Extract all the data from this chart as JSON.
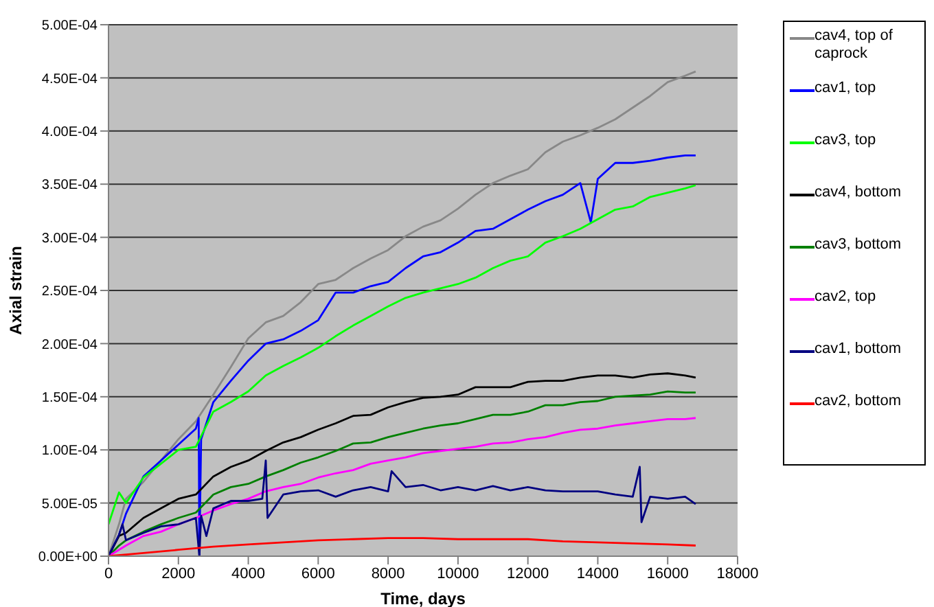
{
  "chart_data": {
    "type": "line",
    "xlabel": "Time, days",
    "ylabel": "Axial strain",
    "xlim": [
      0,
      18000
    ],
    "xticks": [
      0,
      2000,
      4000,
      6000,
      8000,
      10000,
      12000,
      14000,
      16000,
      18000
    ],
    "ylim": [
      0,
      0.0005
    ],
    "yticks": [
      {
        "value": 0,
        "label": "0.00E+00"
      },
      {
        "value": 5e-05,
        "label": "5.00E-05"
      },
      {
        "value": 0.0001,
        "label": "1.00E-04"
      },
      {
        "value": 0.00015,
        "label": "1.50E-04"
      },
      {
        "value": 0.0002,
        "label": "2.00E-04"
      },
      {
        "value": 0.00025,
        "label": "2.50E-04"
      },
      {
        "value": 0.0003,
        "label": "3.00E-04"
      },
      {
        "value": 0.00035,
        "label": "3.50E-04"
      },
      {
        "value": 0.0004,
        "label": "4.00E-04"
      },
      {
        "value": 0.00045,
        "label": "4.50E-04"
      },
      {
        "value": 0.0005,
        "label": "5.00E-04"
      }
    ],
    "grid": "y",
    "legend": "right",
    "marker": "none",
    "x": [
      0,
      300,
      500,
      1000,
      1500,
      2000,
      2500,
      3000,
      3500,
      4000,
      4500,
      5000,
      5500,
      6000,
      6500,
      7000,
      7500,
      8000,
      8500,
      9000,
      9500,
      10000,
      10500,
      11000,
      11500,
      12000,
      12500,
      13000,
      13500,
      14000,
      14500,
      15000,
      15500,
      16000,
      16500,
      16800
    ],
    "series": [
      {
        "name": "cav4, top of caprock",
        "color": "#888888",
        "values": [
          0,
          3e-05,
          5.4e-05,
          7e-05,
          9e-05,
          0.00011,
          0.000127,
          0.000152,
          0.000178,
          0.000205,
          0.00022,
          0.000226,
          0.000239,
          0.000256,
          0.00026,
          0.000271,
          0.00028,
          0.000288,
          0.000301,
          0.00031,
          0.000316,
          0.000327,
          0.00034,
          0.000351,
          0.000358,
          0.000364,
          0.00038,
          0.00039,
          0.000396,
          0.000403,
          0.000411,
          0.000422,
          0.000433,
          0.000446,
          0.000452,
          0.000456
        ]
      },
      {
        "name": "cav1, top",
        "color": "#0000ff",
        "x": [
          0,
          300,
          500,
          1000,
          1500,
          2000,
          2500,
          2580,
          2600,
          2650,
          3000,
          3500,
          4000,
          4500,
          5000,
          5500,
          6000,
          6500,
          7000,
          7500,
          8000,
          8500,
          9000,
          9500,
          10000,
          10500,
          11000,
          11500,
          12000,
          12500,
          13000,
          13500,
          13800,
          14000,
          14500,
          15000,
          15500,
          16000,
          16500,
          16800
        ],
        "values": [
          0,
          2e-05,
          4e-05,
          7.5e-05,
          9e-05,
          0.000105,
          0.00012,
          0.00013,
          0,
          0.00011,
          0.000145,
          0.000165,
          0.000184,
          0.0002,
          0.000204,
          0.000212,
          0.000222,
          0.000248,
          0.000248,
          0.000254,
          0.000258,
          0.000271,
          0.000282,
          0.000286,
          0.000295,
          0.000306,
          0.000308,
          0.000317,
          0.000326,
          0.000334,
          0.00034,
          0.000351,
          0.000314,
          0.000355,
          0.00037,
          0.00037,
          0.000372,
          0.000375,
          0.000377,
          0.000377
        ]
      },
      {
        "name": "cav3, top",
        "color": "#00ff00",
        "values": [
          3e-05,
          6e-05,
          5e-05,
          7.4e-05,
          8.7e-05,
          0.0001,
          0.000103,
          0.000136,
          0.000145,
          0.000155,
          0.00017,
          0.000179,
          0.000187,
          0.000196,
          0.000207,
          0.000217,
          0.000226,
          0.000235,
          0.000243,
          0.000248,
          0.000252,
          0.000256,
          0.000262,
          0.000271,
          0.000278,
          0.000282,
          0.000295,
          0.000301,
          0.000308,
          0.000317,
          0.000326,
          0.000329,
          0.000338,
          0.000342,
          0.000346,
          0.000349
        ]
      },
      {
        "name": "cav4, bottom",
        "color": "#000000",
        "values": [
          0,
          1.9e-05,
          2.2e-05,
          3.6e-05,
          4.5e-05,
          5.4e-05,
          5.8e-05,
          7.5e-05,
          8.4e-05,
          9e-05,
          9.9e-05,
          0.000107,
          0.000112,
          0.000119,
          0.000125,
          0.000132,
          0.000133,
          0.00014,
          0.000145,
          0.000149,
          0.00015,
          0.000152,
          0.000159,
          0.000159,
          0.000159,
          0.000164,
          0.000165,
          0.000165,
          0.000168,
          0.00017,
          0.00017,
          0.000168,
          0.000171,
          0.000172,
          0.00017,
          0.000168
        ]
      },
      {
        "name": "cav3, bottom",
        "color": "#008000",
        "values": [
          0,
          1e-05,
          1.5e-05,
          2.3e-05,
          3e-05,
          3.6e-05,
          4.1e-05,
          5.8e-05,
          6.5e-05,
          6.8e-05,
          7.5e-05,
          8.1e-05,
          8.8e-05,
          9.3e-05,
          9.9e-05,
          0.000106,
          0.000107,
          0.000112,
          0.000116,
          0.00012,
          0.000123,
          0.000125,
          0.000129,
          0.000133,
          0.000133,
          0.000136,
          0.000142,
          0.000142,
          0.000145,
          0.000146,
          0.00015,
          0.000151,
          0.000152,
          0.000155,
          0.000154,
          0.000154
        ]
      },
      {
        "name": "cav2, top",
        "color": "#ff00ff",
        "values": [
          0,
          6e-06,
          1e-05,
          1.9e-05,
          2.3e-05,
          3e-05,
          3.6e-05,
          4.3e-05,
          4.9e-05,
          5.4e-05,
          6.1e-05,
          6.5e-05,
          6.8e-05,
          7.4e-05,
          7.8e-05,
          8.1e-05,
          8.7e-05,
          9e-05,
          9.3e-05,
          9.7e-05,
          9.9e-05,
          0.000101,
          0.000103,
          0.000106,
          0.000107,
          0.00011,
          0.000112,
          0.000116,
          0.000119,
          0.00012,
          0.000123,
          0.000125,
          0.000127,
          0.000129,
          0.000129,
          0.00013
        ]
      },
      {
        "name": "cav1, bottom",
        "color": "#000080",
        "x": [
          0,
          300,
          400,
          500,
          1000,
          1500,
          2000,
          2500,
          2600,
          2650,
          2800,
          3000,
          3500,
          4000,
          4400,
          4500,
          4550,
          5000,
          5500,
          6000,
          6500,
          7000,
          7500,
          8000,
          8100,
          8500,
          9000,
          9500,
          10000,
          10500,
          11000,
          11500,
          12000,
          12500,
          13000,
          13500,
          14000,
          14500,
          15000,
          15200,
          15250,
          15500,
          16000,
          16500,
          16800
        ],
        "values": [
          0,
          2e-05,
          3e-05,
          1.5e-05,
          2.2e-05,
          2.8e-05,
          3e-05,
          3.6e-05,
          0,
          3.8e-05,
          1.9e-05,
          4.5e-05,
          5.2e-05,
          5.2e-05,
          5.4e-05,
          9e-05,
          3.6e-05,
          5.8e-05,
          6.1e-05,
          6.2e-05,
          5.6e-05,
          6.2e-05,
          6.5e-05,
          6.1e-05,
          8e-05,
          6.5e-05,
          6.7e-05,
          6.2e-05,
          6.5e-05,
          6.2e-05,
          6.6e-05,
          6.2e-05,
          6.5e-05,
          6.2e-05,
          6.1e-05,
          6.1e-05,
          6.1e-05,
          5.8e-05,
          5.6e-05,
          8.4e-05,
          3.2e-05,
          5.6e-05,
          5.4e-05,
          5.6e-05,
          4.9e-05
        ]
      },
      {
        "name": "cav2, bottom",
        "color": "#ff0000",
        "x": [
          0,
          1000,
          2000,
          3000,
          4000,
          5000,
          6000,
          7000,
          8000,
          9000,
          10000,
          11000,
          12000,
          13000,
          14000,
          15000,
          16000,
          16800
        ],
        "values": [
          0,
          3e-06,
          6e-06,
          9e-06,
          1.1e-05,
          1.3e-05,
          1.5e-05,
          1.6e-05,
          1.7e-05,
          1.7e-05,
          1.6e-05,
          1.6e-05,
          1.6e-05,
          1.4e-05,
          1.3e-05,
          1.2e-05,
          1.1e-05,
          1e-05
        ]
      }
    ]
  }
}
